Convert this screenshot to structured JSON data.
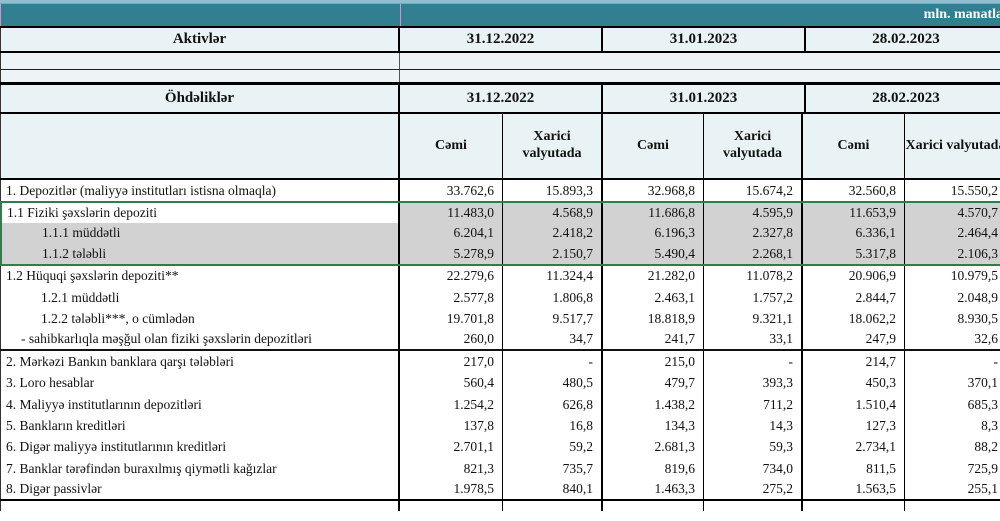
{
  "banner": {
    "unit_label": "mln. manatla"
  },
  "assets_header": {
    "title": "Aktivlər",
    "dates": [
      "31.12.2022",
      "31.01.2023",
      "28.02.2023"
    ]
  },
  "liabilities_header": {
    "title": "Öhdəliklər",
    "dates": [
      "31.12.2022",
      "31.01.2023",
      "28.02.2023"
    ],
    "subcols": {
      "total": "Cəmi",
      "foreign": "Xarici valyutada"
    }
  },
  "rows": [
    {
      "label": "1. Depozitlər (maliyyə institutları istisna olmaqla)",
      "values": [
        "33.762,6",
        "15.893,3",
        "32.968,8",
        "15.674,2",
        "32.560,8",
        "15.550,2"
      ]
    },
    {
      "label": "1.1 Fiziki şəxslərin depoziti",
      "values": [
        "11.483,0",
        "4.568,9",
        "11.686,8",
        "4.595,9",
        "11.653,9",
        "4.570,7"
      ]
    },
    {
      "label": "1.1.1 müddətli",
      "values": [
        "6.204,1",
        "2.418,2",
        "6.196,3",
        "2.327,8",
        "6.336,1",
        "2.464,4"
      ]
    },
    {
      "label": "1.1.2 tələbli",
      "values": [
        "5.278,9",
        "2.150,7",
        "5.490,4",
        "2.268,1",
        "5.317,8",
        "2.106,3"
      ]
    },
    {
      "label": "1.2 Hüquqi şəxslərin depoziti**",
      "values": [
        "22.279,6",
        "11.324,4",
        "21.282,0",
        "11.078,2",
        "20.906,9",
        "10.979,5"
      ]
    },
    {
      "label": "1.2.1 müddətli",
      "values": [
        "2.577,8",
        "1.806,8",
        "2.463,1",
        "1.757,2",
        "2.844,7",
        "2.048,9"
      ]
    },
    {
      "label": "1.2.2 tələbli***, o cümlədən",
      "values": [
        "19.701,8",
        "9.517,7",
        "18.818,9",
        "9.321,1",
        "18.062,2",
        "8.930,5"
      ]
    },
    {
      "label": "- sahibkarlıqla məşğul olan fiziki şəxslərin depozitləri",
      "values": [
        "260,0",
        "34,7",
        "241,7",
        "33,1",
        "247,9",
        "32,6"
      ]
    },
    {
      "label": "2. Mərkəzi Bankın banklara qarşı tələbləri",
      "values": [
        "217,0",
        "-",
        "215,0",
        "-",
        "214,7",
        "-"
      ]
    },
    {
      "label": "3. Loro hesablar",
      "values": [
        "560,4",
        "480,5",
        "479,7",
        "393,3",
        "450,3",
        "370,1"
      ]
    },
    {
      "label": "4. Maliyyə institutlarının  depozitləri",
      "values": [
        "1.254,2",
        "626,8",
        "1.438,2",
        "711,2",
        "1.510,4",
        "685,3"
      ]
    },
    {
      "label": "5. Bankların kreditləri",
      "values": [
        "137,8",
        "16,8",
        "134,3",
        "14,3",
        "127,3",
        "8,3"
      ]
    },
    {
      "label": "6. Digər maliyyə institutlarının kreditləri",
      "values": [
        "2.701,1",
        "59,2",
        "2.681,3",
        "59,3",
        "2.734,1",
        "88,2"
      ]
    },
    {
      "label": "7. Banklar tərəfindən buraxılmış qiymətli kağızlar",
      "values": [
        "821,3",
        "735,7",
        "819,6",
        "734,0",
        "811,5",
        "725,9"
      ]
    },
    {
      "label": "8. Digər passivlər",
      "values": [
        "1.978,5",
        "840,1",
        "1.463,3",
        "275,2",
        "1.563,5",
        "255,1"
      ]
    }
  ],
  "colors": {
    "banner_teal": "#337f92",
    "banner_strip": "#8fc0cf",
    "header_bg": "#e9f3f6",
    "highlight_grey": "#d2d2d2",
    "selection_green": "#2e7d4a"
  }
}
